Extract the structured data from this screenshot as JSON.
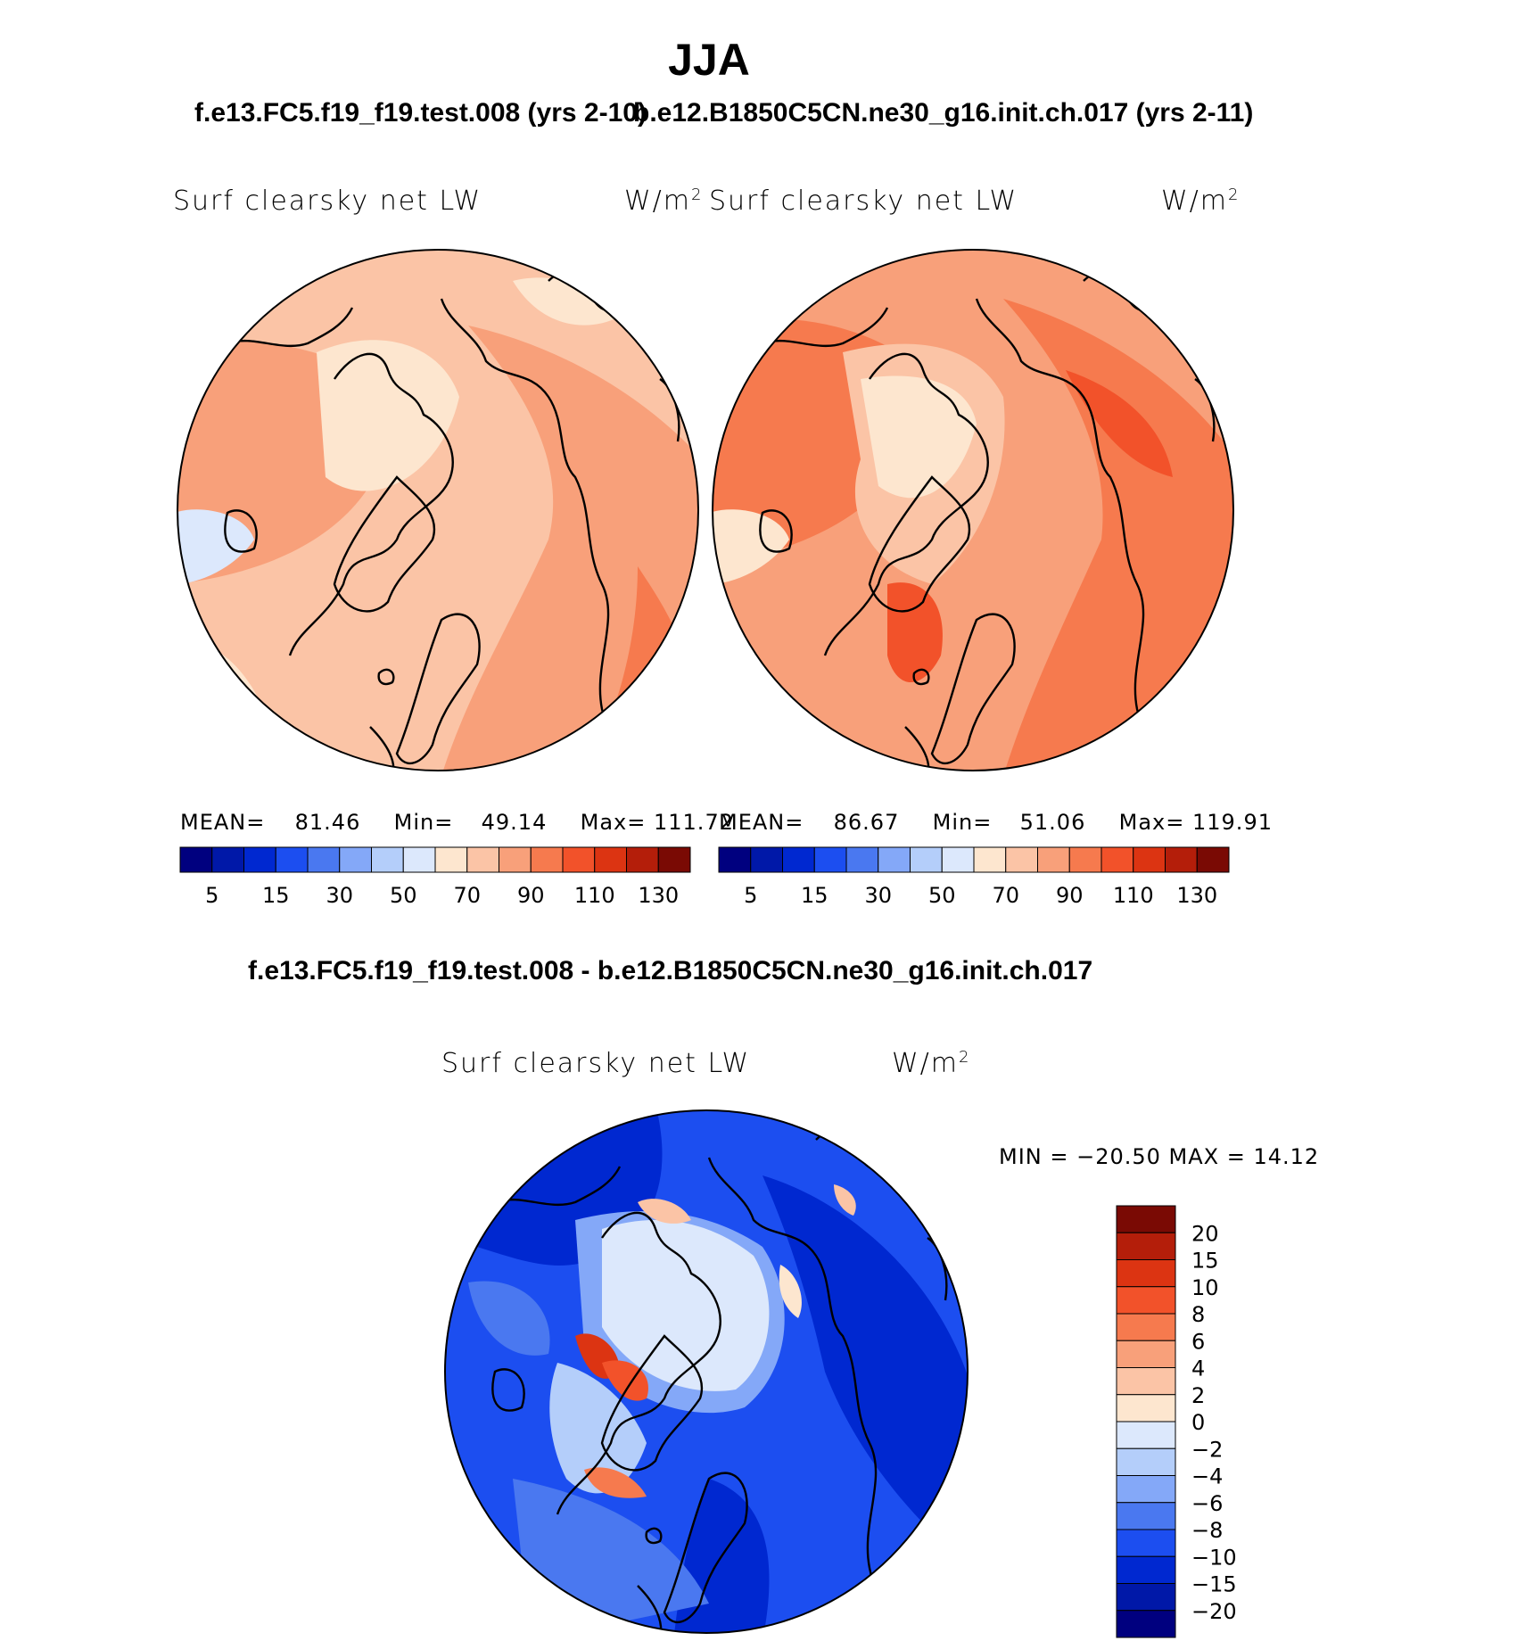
{
  "figure": {
    "season": "JJA",
    "left_case_title": "f.e13.FC5.f19_f19.test.008 (yrs 2-10)",
    "right_case_title": "b.e12.B1850C5CN.ne30_g16.init.ch.017 (yrs 2-11)",
    "diff_title": "f.e13.FC5.f19_f19.test.008 - b.e12.B1850C5CN.ne30_g16.init.ch.017"
  },
  "panels": {
    "left": {
      "variable": "Surf clearsky net LW",
      "units": "W/m",
      "units_exp": "2",
      "mean_label": "MEAN=",
      "mean": "81.46",
      "min_label": "Min=",
      "min": "49.14",
      "max_label": "Max=",
      "max": "111.72"
    },
    "right": {
      "variable": "Surf clearsky net LW",
      "units": "W/m",
      "units_exp": "2",
      "mean_label": "MEAN=",
      "mean": "86.67",
      "min_label": "Min=",
      "min": "51.06",
      "max_label": "Max=",
      "max": "119.91"
    },
    "diff": {
      "variable": "Surf clearsky net LW",
      "units": "W/m",
      "units_exp": "2",
      "minmax": "MIN = −20.50 MAX =   14.12"
    }
  },
  "colorbars": {
    "absolute": {
      "colors": [
        "#00007f",
        "#0018a8",
        "#0028d0",
        "#1c4ef0",
        "#4a78f0",
        "#84a8f8",
        "#b4cefa",
        "#dce8fc",
        "#fde6cf",
        "#fbc4a6",
        "#f8a07a",
        "#f67a4e",
        "#f2522a",
        "#dc3412",
        "#b41e0a",
        "#7a0a04"
      ],
      "tick_labels": [
        "5",
        "15",
        "30",
        "50",
        "70",
        "90",
        "110",
        "130"
      ]
    },
    "difference": {
      "colors": [
        "#00007f",
        "#0018a8",
        "#0028d0",
        "#1c4ef0",
        "#4a78f0",
        "#84a8f8",
        "#b4cefa",
        "#dce8fc",
        "#fde6cf",
        "#fbc4a6",
        "#f8a07a",
        "#f67a4e",
        "#f2522a",
        "#dc3412",
        "#b41e0a",
        "#7a0a04"
      ],
      "tick_labels": [
        "20",
        "15",
        "10",
        "8",
        "6",
        "4",
        "2",
        "0",
        "−2",
        "−4",
        "−6",
        "−8",
        "−10",
        "−15",
        "−20"
      ]
    }
  }
}
